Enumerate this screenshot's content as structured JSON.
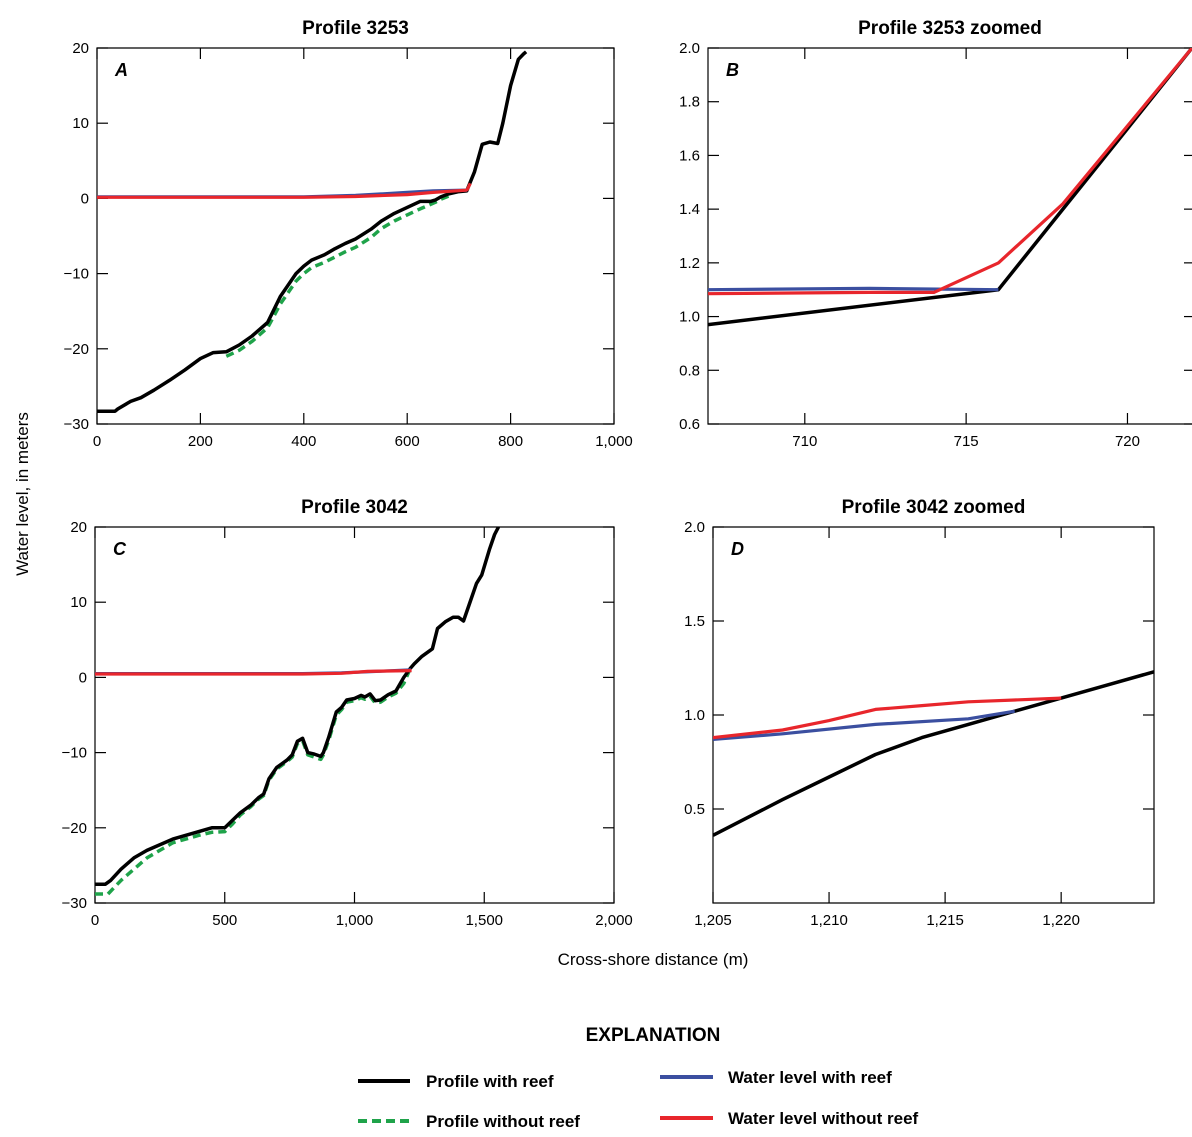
{
  "figure": {
    "ylabel": "Water level, in meters",
    "xlabel": "Cross-shore distance (m)"
  },
  "legend": {
    "title": "EXPLANATION",
    "items": [
      {
        "label": "Profile with reef",
        "color": "#000000",
        "style": "solid"
      },
      {
        "label": "Profile without reef",
        "color": "#1fa34a",
        "style": "dashed"
      },
      {
        "label": "Water level with reef",
        "color": "#3b4fa0",
        "style": "solid"
      },
      {
        "label": "Water level without reef",
        "color": "#e8262c",
        "style": "solid"
      }
    ]
  },
  "chart_data": [
    {
      "type": "line",
      "panel": "A",
      "title": "Profile 3253",
      "xlim": [
        0,
        1000
      ],
      "ylim": [
        -30,
        20
      ],
      "xticks": [
        0,
        200,
        400,
        600,
        800,
        1000
      ],
      "xtick_labels": [
        "0",
        "200",
        "400",
        "600",
        "800",
        "1,000"
      ],
      "yticks": [
        -30,
        -20,
        -10,
        0,
        10,
        20
      ],
      "ytick_labels": [
        "−30",
        "−20",
        "−10",
        "0",
        "10",
        "20"
      ],
      "series": [
        {
          "name": "Profile with reef",
          "x": [
            0,
            35,
            40,
            65,
            85,
            110,
            140,
            170,
            200,
            225,
            250,
            275,
            300,
            330,
            355,
            370,
            385,
            400,
            415,
            440,
            460,
            480,
            500,
            530,
            550,
            575,
            600,
            625,
            645,
            655,
            665,
            680,
            700,
            715,
            730,
            745,
            760,
            775,
            785,
            800,
            815,
            825,
            830
          ],
          "y": [
            -28.3,
            -28.3,
            -28,
            -27,
            -26.5,
            -25.5,
            -24.2,
            -22.8,
            -21.3,
            -20.5,
            -20.4,
            -19.5,
            -18.3,
            -16.5,
            -13,
            -11.5,
            -10,
            -9,
            -8.2,
            -7.5,
            -6.7,
            -6,
            -5.4,
            -4.1,
            -3,
            -2,
            -1.2,
            -0.4,
            -0.4,
            -0.2,
            0.2,
            0.6,
            0.9,
            1,
            3.5,
            7.2,
            7.5,
            7.3,
            10,
            15,
            18.5,
            19.2,
            19.5
          ]
        },
        {
          "name": "Profile without reef",
          "x": [
            250,
            275,
            300,
            330,
            355,
            370,
            385,
            400,
            415,
            440,
            460,
            480,
            500,
            530,
            550,
            575,
            600,
            625,
            645,
            655,
            665,
            680
          ],
          "y": [
            -21,
            -20.2,
            -19,
            -17.2,
            -14,
            -12.5,
            -11,
            -10,
            -9.2,
            -8.5,
            -7.8,
            -7.1,
            -6.5,
            -5.2,
            -4,
            -3,
            -2.2,
            -1.4,
            -0.8,
            -0.5,
            -0.1,
            0.3
          ]
        },
        {
          "name": "Water level with reef",
          "x": [
            0,
            400,
            500,
            600,
            650,
            716
          ],
          "y": [
            0.2,
            0.2,
            0.4,
            0.8,
            1.0,
            1.1
          ]
        },
        {
          "name": "Water level without reef",
          "x": [
            0,
            400,
            500,
            600,
            650,
            714,
            716,
            718,
            720,
            722
          ],
          "y": [
            0.15,
            0.15,
            0.25,
            0.5,
            0.8,
            1.09,
            1.2,
            1.42,
            1.71,
            2.0
          ]
        }
      ]
    },
    {
      "type": "line",
      "panel": "B",
      "title": "Profile 3253 zoomed",
      "xlim": [
        707,
        722
      ],
      "ylim": [
        0.6,
        2.0
      ],
      "xticks": [
        710,
        715,
        720
      ],
      "xtick_labels": [
        "710",
        "715",
        "720"
      ],
      "yticks": [
        0.6,
        0.8,
        1.0,
        1.2,
        1.4,
        1.6,
        1.8,
        2.0
      ],
      "ytick_labels": [
        "0.6",
        "0.8",
        "1.0",
        "1.2",
        "1.4",
        "1.6",
        "1.8",
        "2.0"
      ],
      "series": [
        {
          "name": "Profile with reef",
          "x": [
            707,
            716,
            718,
            720,
            722
          ],
          "y": [
            0.97,
            1.1,
            1.4,
            1.7,
            2.0
          ]
        },
        {
          "name": "Water level with reef",
          "x": [
            707,
            712,
            716
          ],
          "y": [
            1.1,
            1.105,
            1.1
          ]
        },
        {
          "name": "Water level without reef",
          "x": [
            707,
            712,
            714,
            716,
            718,
            720,
            722
          ],
          "y": [
            1.085,
            1.09,
            1.09,
            1.2,
            1.42,
            1.71,
            2.0
          ]
        }
      ]
    },
    {
      "type": "line",
      "panel": "C",
      "title": "Profile 3042",
      "xlim": [
        0,
        2000
      ],
      "ylim": [
        -30,
        20
      ],
      "xticks": [
        0,
        500,
        1000,
        1500,
        2000
      ],
      "xtick_labels": [
        "0",
        "500",
        "1,000",
        "1,500",
        "2,000"
      ],
      "yticks": [
        -30,
        -20,
        -10,
        0,
        10,
        20
      ],
      "ytick_labels": [
        "−30",
        "−20",
        "−10",
        "0",
        "10",
        "20"
      ],
      "series": [
        {
          "name": "Profile with reef",
          "x": [
            0,
            40,
            60,
            100,
            150,
            200,
            300,
            400,
            450,
            500,
            530,
            560,
            600,
            630,
            650,
            670,
            700,
            740,
            760,
            780,
            800,
            820,
            845,
            870,
            880,
            900,
            930,
            950,
            970,
            1000,
            1025,
            1040,
            1060,
            1080,
            1100,
            1130,
            1160,
            1190,
            1215,
            1230,
            1260,
            1300,
            1320,
            1350,
            1380,
            1400,
            1420,
            1440,
            1470,
            1490,
            1520,
            1540,
            1555
          ],
          "y": [
            -27.5,
            -27.5,
            -27,
            -25.5,
            -24,
            -23,
            -21.5,
            -20.5,
            -20,
            -20,
            -19,
            -18,
            -17,
            -16,
            -15.5,
            -13.5,
            -12,
            -11,
            -10.3,
            -8.5,
            -8.1,
            -10,
            -10.2,
            -10.5,
            -10,
            -8,
            -4.6,
            -4,
            -3,
            -2.8,
            -2.4,
            -2.6,
            -2.2,
            -3.1,
            -3,
            -2.3,
            -1.8,
            0,
            1.2,
            1.8,
            2.8,
            3.8,
            6.5,
            7.4,
            8,
            8,
            7.5,
            9.5,
            12.5,
            13.6,
            17,
            19,
            20
          ]
        },
        {
          "name": "Profile without reef",
          "x": [
            0,
            50,
            100,
            150,
            200,
            300,
            400,
            450,
            500,
            530,
            560,
            600,
            630,
            650,
            670,
            700,
            740,
            760,
            780,
            800,
            820,
            845,
            870,
            880,
            900,
            930,
            950,
            970,
            1000,
            1025,
            1040,
            1060,
            1080,
            1100,
            1130,
            1160,
            1190,
            1210
          ],
          "y": [
            -28.8,
            -28.8,
            -27,
            -25.5,
            -24,
            -22,
            -21,
            -20.6,
            -20.5,
            -19.5,
            -18.3,
            -17.2,
            -16.2,
            -15.7,
            -13.7,
            -12.2,
            -11.2,
            -10.6,
            -8.8,
            -8.4,
            -10.3,
            -10.6,
            -10.9,
            -10.3,
            -8.4,
            -5,
            -4.3,
            -3.3,
            -3.1,
            -2.7,
            -2.9,
            -2.5,
            -3.4,
            -3.3,
            -2.6,
            -2.1,
            -0.8,
            0.8
          ]
        },
        {
          "name": "Water level with reef",
          "x": [
            0,
            500,
            800,
            950,
            1218
          ],
          "y": [
            0.5,
            0.5,
            0.5,
            0.6,
            1.0
          ]
        },
        {
          "name": "Water level without reef",
          "x": [
            0,
            500,
            800,
            950,
            1050,
            1220
          ],
          "y": [
            0.45,
            0.45,
            0.45,
            0.55,
            0.8,
            0.9
          ]
        }
      ]
    },
    {
      "type": "line",
      "panel": "D",
      "title": "Profile 3042 zoomed",
      "xlim": [
        1205,
        1224
      ],
      "ylim": [
        0,
        2.0
      ],
      "xticks": [
        1205,
        1210,
        1215,
        1220
      ],
      "xtick_labels": [
        "1,205",
        "1,210",
        "1,215",
        "1,220"
      ],
      "yticks": [
        0.5,
        1.0,
        1.5,
        2.0
      ],
      "ytick_labels": [
        "0.5",
        "1.0",
        "1.5",
        "2.0"
      ],
      "series": [
        {
          "name": "Profile with reef",
          "x": [
            1205,
            1208,
            1210,
            1212,
            1214,
            1216,
            1218,
            1220,
            1222,
            1224
          ],
          "y": [
            0.36,
            0.55,
            0.67,
            0.79,
            0.88,
            0.95,
            1.02,
            1.09,
            1.16,
            1.23
          ]
        },
        {
          "name": "Water level with reef",
          "x": [
            1205,
            1208,
            1212,
            1216,
            1218
          ],
          "y": [
            0.87,
            0.9,
            0.95,
            0.98,
            1.02
          ]
        },
        {
          "name": "Water level without reef",
          "x": [
            1205,
            1208,
            1210,
            1212,
            1214,
            1216,
            1218,
            1220
          ],
          "y": [
            0.88,
            0.92,
            0.97,
            1.03,
            1.05,
            1.07,
            1.08,
            1.09
          ]
        }
      ]
    }
  ]
}
